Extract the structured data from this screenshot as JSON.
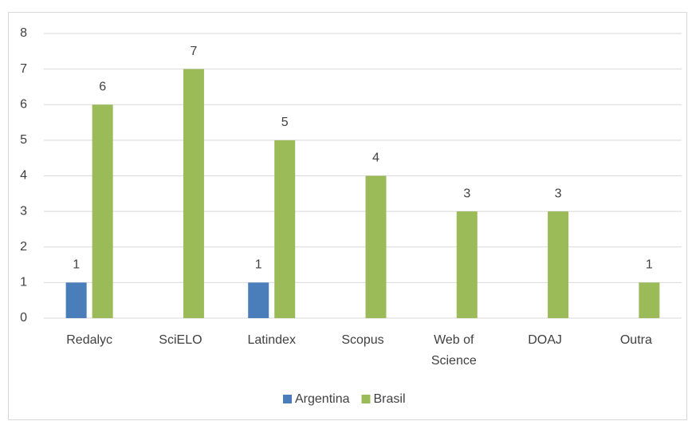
{
  "chart_data": {
    "type": "bar",
    "categories": [
      "Redalyc",
      "SciELO",
      "Latindex",
      "Scopus",
      "Web of Science",
      "DOAJ",
      "Outra"
    ],
    "series": [
      {
        "name": "Argentina",
        "color": "#4a7ebb",
        "values": [
          1,
          null,
          1,
          null,
          null,
          null,
          null
        ]
      },
      {
        "name": "Brasil",
        "color": "#9bbb59",
        "values": [
          6,
          7,
          5,
          4,
          3,
          3,
          1
        ]
      }
    ],
    "ylim": [
      0,
      8
    ],
    "yticks": [
      0,
      1,
      2,
      3,
      4,
      5,
      6,
      7,
      8
    ],
    "grid": true,
    "legend": "bottom"
  }
}
